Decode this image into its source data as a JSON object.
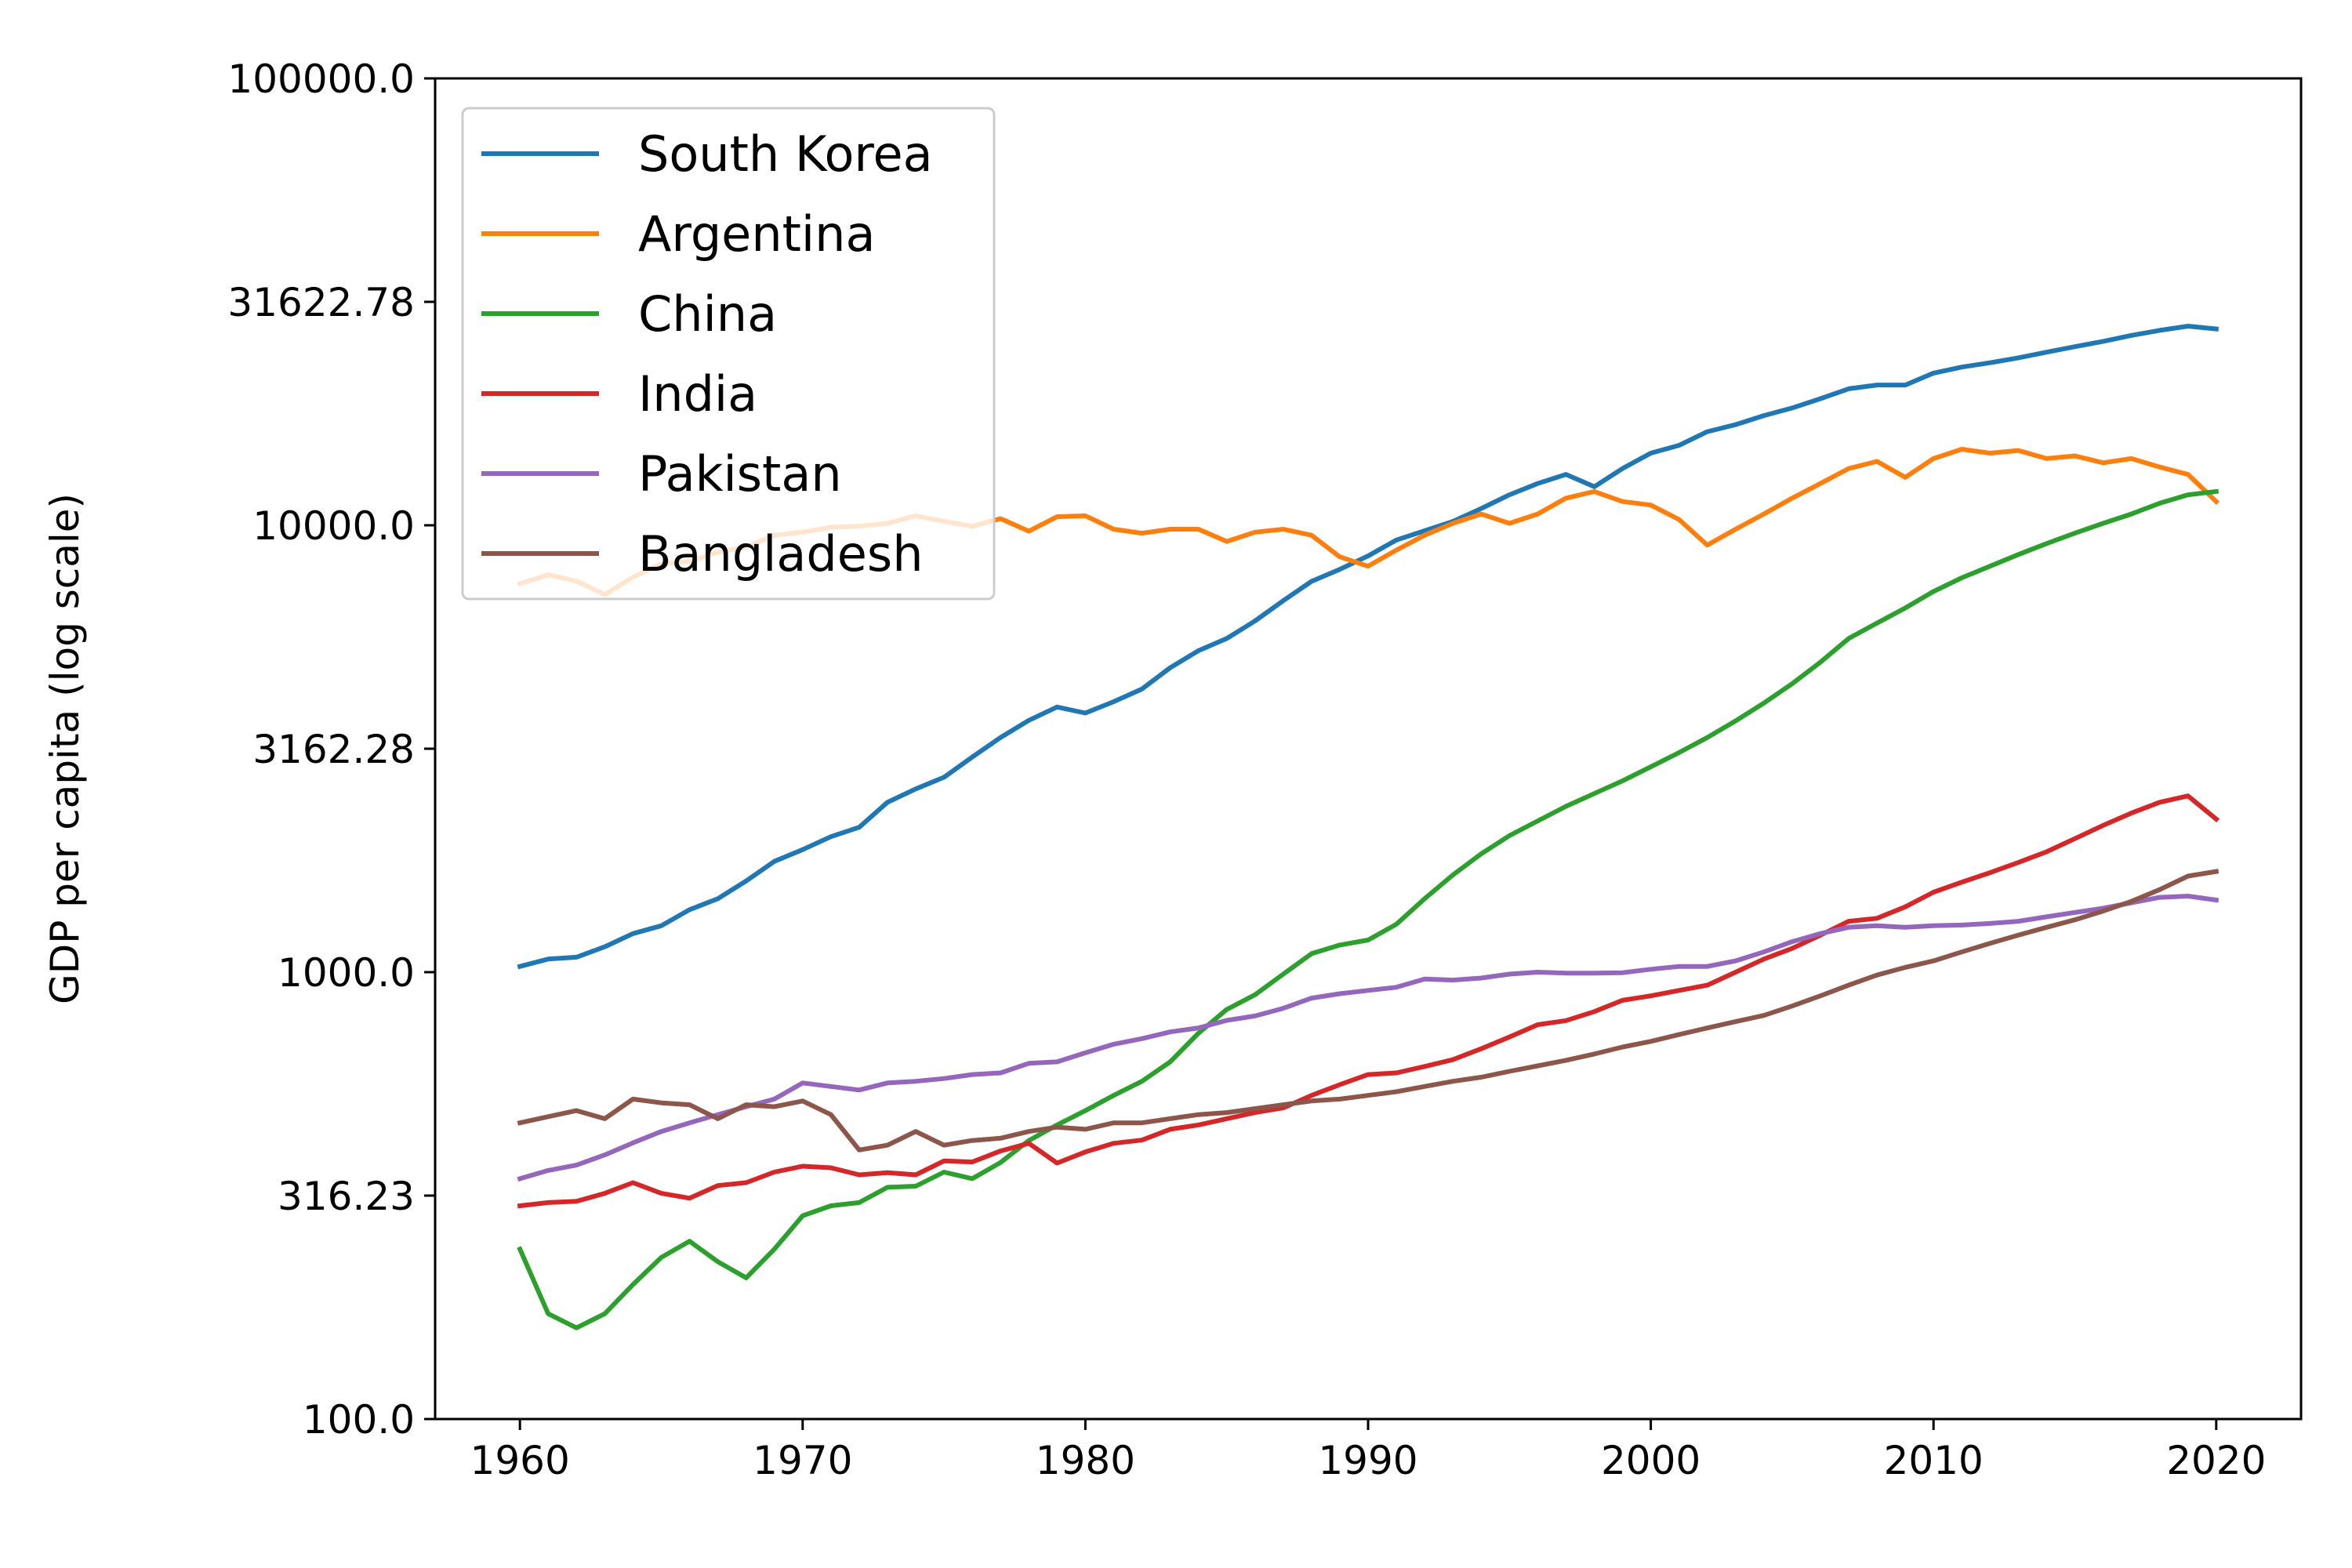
{
  "chart_data": {
    "type": "line",
    "ylabel": "GDP per capita (log scale)",
    "xlabel": "",
    "y_scale": "log",
    "ylim": [
      100,
      100000
    ],
    "xlim": [
      1957,
      2023
    ],
    "grid": false,
    "legend_position": "top-left",
    "x_ticks": [
      1960,
      1970,
      1980,
      1990,
      2000,
      2010,
      2020
    ],
    "x_tick_labels": [
      "1960",
      "1970",
      "1980",
      "1990",
      "2000",
      "2010",
      "2020"
    ],
    "y_ticks": [
      100,
      316.23,
      1000,
      3162.28,
      10000,
      31622.78,
      100000
    ],
    "y_tick_labels": [
      "100.0",
      "316.23",
      "1000.0",
      "3162.28",
      "10000.0",
      "31622.78",
      "100000.0"
    ],
    "x": [
      1960,
      1961,
      1962,
      1963,
      1964,
      1965,
      1966,
      1967,
      1968,
      1969,
      1970,
      1971,
      1972,
      1973,
      1974,
      1975,
      1976,
      1977,
      1978,
      1979,
      1980,
      1981,
      1982,
      1983,
      1984,
      1985,
      1986,
      1987,
      1988,
      1989,
      1990,
      1991,
      1992,
      1993,
      1994,
      1995,
      1996,
      1997,
      1998,
      1999,
      2000,
      2001,
      2002,
      2003,
      2004,
      2005,
      2006,
      2007,
      2008,
      2009,
      2010,
      2011,
      2012,
      2013,
      2014,
      2015,
      2016,
      2017,
      2018,
      2019,
      2020
    ],
    "series": [
      {
        "name": "South Korea",
        "color": "#1f77b4",
        "values": [
          1030,
          1070,
          1080,
          1140,
          1220,
          1270,
          1380,
          1460,
          1600,
          1770,
          1880,
          2010,
          2110,
          2400,
          2570,
          2730,
          3030,
          3350,
          3660,
          3920,
          3800,
          4030,
          4300,
          4800,
          5240,
          5580,
          6110,
          6780,
          7490,
          7970,
          8540,
          9270,
          9720,
          10200,
          10900,
          11700,
          12400,
          13000,
          12200,
          13400,
          14500,
          15100,
          16200,
          16800,
          17600,
          18300,
          19200,
          20200,
          20600,
          20600,
          21900,
          22600,
          23100,
          23700,
          24400,
          25100,
          25800,
          26600,
          27300,
          27900,
          27500
        ]
      },
      {
        "name": "Argentina",
        "color": "#ff7f0e",
        "values": [
          7400,
          7750,
          7500,
          7000,
          7650,
          8200,
          8300,
          8700,
          8950,
          9500,
          9650,
          9900,
          9950,
          10100,
          10500,
          10200,
          9950,
          10350,
          9700,
          10450,
          10500,
          9800,
          9600,
          9800,
          9800,
          9200,
          9650,
          9800,
          9500,
          8500,
          8100,
          8800,
          9500,
          10100,
          10600,
          10100,
          10600,
          11500,
          11900,
          11300,
          11100,
          10300,
          9030,
          9800,
          10600,
          11500,
          12400,
          13400,
          13900,
          12800,
          14100,
          14800,
          14500,
          14700,
          14100,
          14300,
          13800,
          14100,
          13500,
          13000,
          11300
        ]
      },
      {
        "name": "China",
        "color": "#2ca02c",
        "values": [
          240,
          172,
          160,
          172,
          200,
          230,
          250,
          225,
          207,
          240,
          285,
          300,
          305,
          330,
          332,
          357,
          345,
          375,
          420,
          455,
          490,
          530,
          570,
          630,
          730,
          825,
          890,
          990,
          1100,
          1150,
          1180,
          1280,
          1460,
          1650,
          1840,
          2020,
          2180,
          2350,
          2510,
          2680,
          2880,
          3100,
          3350,
          3650,
          4000,
          4420,
          4940,
          5580,
          6040,
          6530,
          7110,
          7630,
          8100,
          8600,
          9100,
          9600,
          10100,
          10600,
          11200,
          11700,
          11900
        ]
      },
      {
        "name": "India",
        "color": "#d62728",
        "values": [
          300,
          305,
          307,
          320,
          338,
          320,
          312,
          333,
          338,
          357,
          368,
          365,
          352,
          356,
          352,
          378,
          376,
          398,
          414,
          374,
          396,
          414,
          421,
          445,
          455,
          470,
          485,
          497,
          530,
          560,
          590,
          595,
          615,
          637,
          674,
          716,
          763,
          779,
          816,
          865,
          885,
          910,
          935,
          1000,
          1070,
          1130,
          1210,
          1300,
          1320,
          1400,
          1510,
          1590,
          1670,
          1760,
          1860,
          1990,
          2130,
          2270,
          2400,
          2480,
          2200
        ]
      },
      {
        "name": "Pakistan",
        "color": "#9467bd",
        "values": [
          345,
          360,
          370,
          390,
          415,
          440,
          460,
          480,
          500,
          520,
          565,
          555,
          545,
          565,
          570,
          578,
          590,
          595,
          625,
          630,
          660,
          690,
          710,
          735,
          750,
          780,
          798,
          830,
          875,
          895,
          910,
          925,
          965,
          960,
          970,
          990,
          1000,
          995,
          995,
          997,
          1015,
          1030,
          1030,
          1060,
          1110,
          1170,
          1220,
          1260,
          1270,
          1260,
          1270,
          1275,
          1285,
          1300,
          1330,
          1360,
          1390,
          1430,
          1470,
          1480,
          1450
        ]
      },
      {
        "name": "Bangladesh",
        "color": "#8c564b",
        "values": [
          460,
          475,
          490,
          470,
          520,
          510,
          505,
          470,
          505,
          500,
          515,
          480,
          400,
          410,
          440,
          410,
          420,
          425,
          440,
          450,
          445,
          460,
          460,
          470,
          480,
          485,
          495,
          505,
          515,
          520,
          530,
          540,
          555,
          570,
          582,
          600,
          617,
          635,
          656,
          680,
          700,
          725,
          750,
          775,
          800,
          840,
          885,
          935,
          985,
          1025,
          1060,
          1110,
          1160,
          1210,
          1260,
          1310,
          1370,
          1440,
          1530,
          1640,
          1680
        ]
      }
    ]
  }
}
